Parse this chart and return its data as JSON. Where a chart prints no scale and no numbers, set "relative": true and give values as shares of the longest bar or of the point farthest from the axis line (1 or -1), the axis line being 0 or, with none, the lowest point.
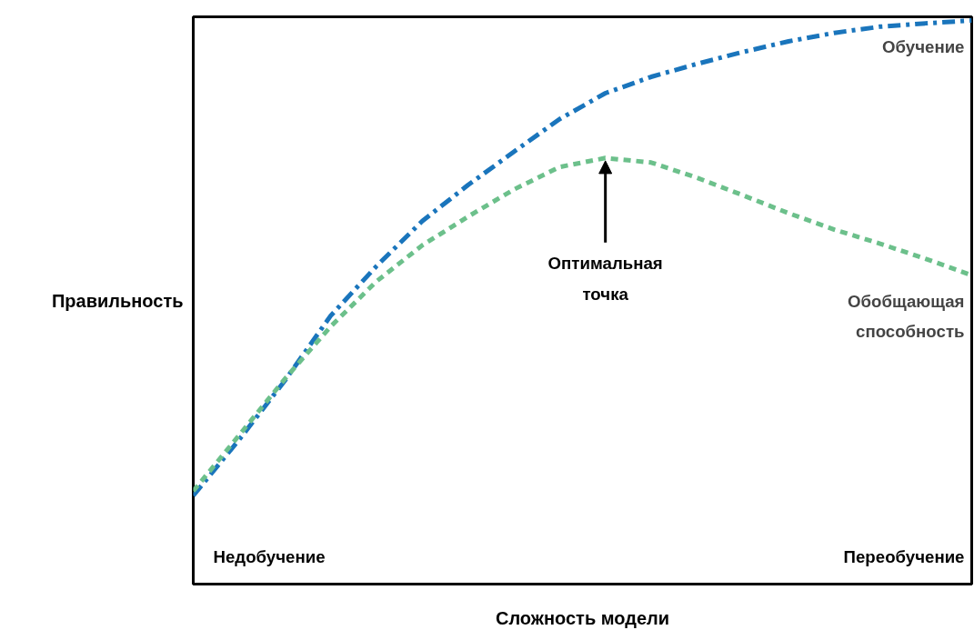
{
  "chart_data": {
    "type": "line",
    "relative": true,
    "xlabel": "Сложность модели",
    "ylabel": "Правильность",
    "categories": [
      null,
      null,
      null,
      null,
      null,
      null,
      null,
      null,
      null,
      null,
      null,
      null,
      null,
      null,
      null,
      null,
      null,
      null
    ],
    "series": [
      {
        "name": "Обучение",
        "color": "#1a75bc",
        "line_style": "dashdot",
        "values": [
          0.157,
          0.256,
          0.361,
          0.476,
          0.564,
          0.644,
          0.708,
          0.767,
          0.825,
          0.871,
          0.9,
          0.923,
          0.944,
          0.963,
          0.978,
          0.989,
          0.995,
          1.0
        ]
      },
      {
        "name": "Обобщающая способность",
        "color": "#6cc08b",
        "line_style": "dashed",
        "values": [
          0.165,
          0.264,
          0.364,
          0.457,
          0.537,
          0.601,
          0.652,
          0.7,
          0.74,
          0.756,
          0.748,
          0.721,
          0.69,
          0.658,
          0.629,
          0.604,
          0.577,
          0.548
        ]
      }
    ],
    "annotations": [
      "Оптимальная точка",
      "Недобучение",
      "Переобучение"
    ],
    "grid": false,
    "marker": "none"
  }
}
